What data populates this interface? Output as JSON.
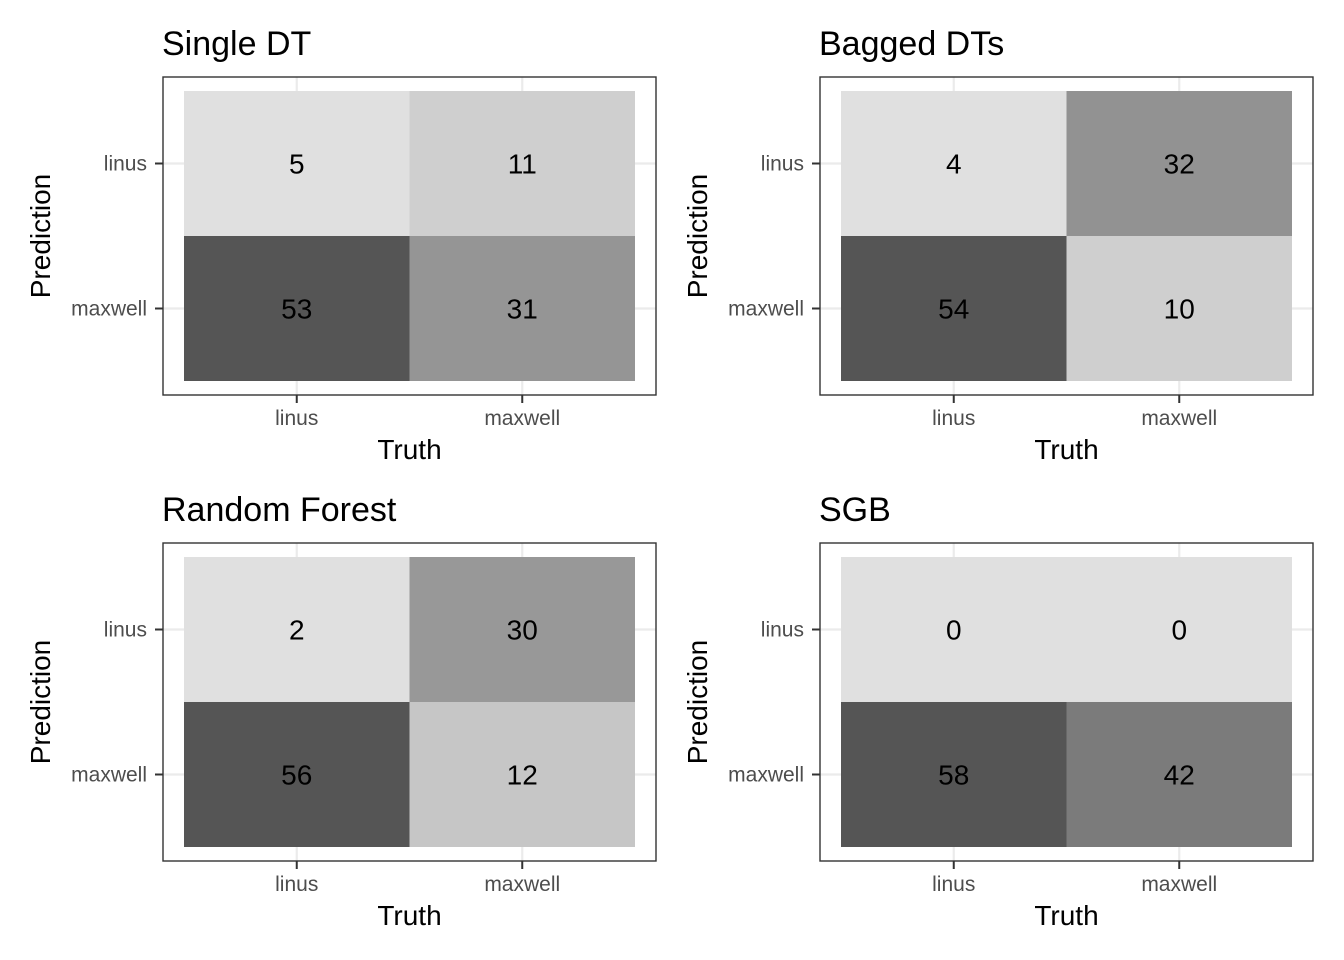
{
  "chart_data": [
    {
      "type": "heatmap",
      "title": "Single DT",
      "xlabel": "Truth",
      "ylabel": "Prediction",
      "x_categories": [
        "linus",
        "maxwell"
      ],
      "y_categories": [
        "linus",
        "maxwell"
      ],
      "values": [
        [
          5,
          11
        ],
        [
          53,
          31
        ]
      ],
      "color_scale": {
        "low": "#e0e0e0",
        "high": "#555555"
      },
      "grid": true,
      "legend": "none"
    },
    {
      "type": "heatmap",
      "title": "Bagged DTs",
      "xlabel": "Truth",
      "ylabel": "Prediction",
      "x_categories": [
        "linus",
        "maxwell"
      ],
      "y_categories": [
        "linus",
        "maxwell"
      ],
      "values": [
        [
          4,
          32
        ],
        [
          54,
          10
        ]
      ],
      "color_scale": {
        "low": "#e0e0e0",
        "high": "#555555"
      },
      "grid": true,
      "legend": "none"
    },
    {
      "type": "heatmap",
      "title": "Random Forest",
      "xlabel": "Truth",
      "ylabel": "Prediction",
      "x_categories": [
        "linus",
        "maxwell"
      ],
      "y_categories": [
        "linus",
        "maxwell"
      ],
      "values": [
        [
          2,
          30
        ],
        [
          56,
          12
        ]
      ],
      "color_scale": {
        "low": "#e0e0e0",
        "high": "#555555"
      },
      "grid": true,
      "legend": "none"
    },
    {
      "type": "heatmap",
      "title": "SGB",
      "xlabel": "Truth",
      "ylabel": "Prediction",
      "x_categories": [
        "linus",
        "maxwell"
      ],
      "y_categories": [
        "linus",
        "maxwell"
      ],
      "values": [
        [
          0,
          0
        ],
        [
          58,
          42
        ]
      ],
      "color_scale": {
        "low": "#e0e0e0",
        "high": "#555555"
      },
      "grid": true,
      "legend": "none"
    }
  ]
}
